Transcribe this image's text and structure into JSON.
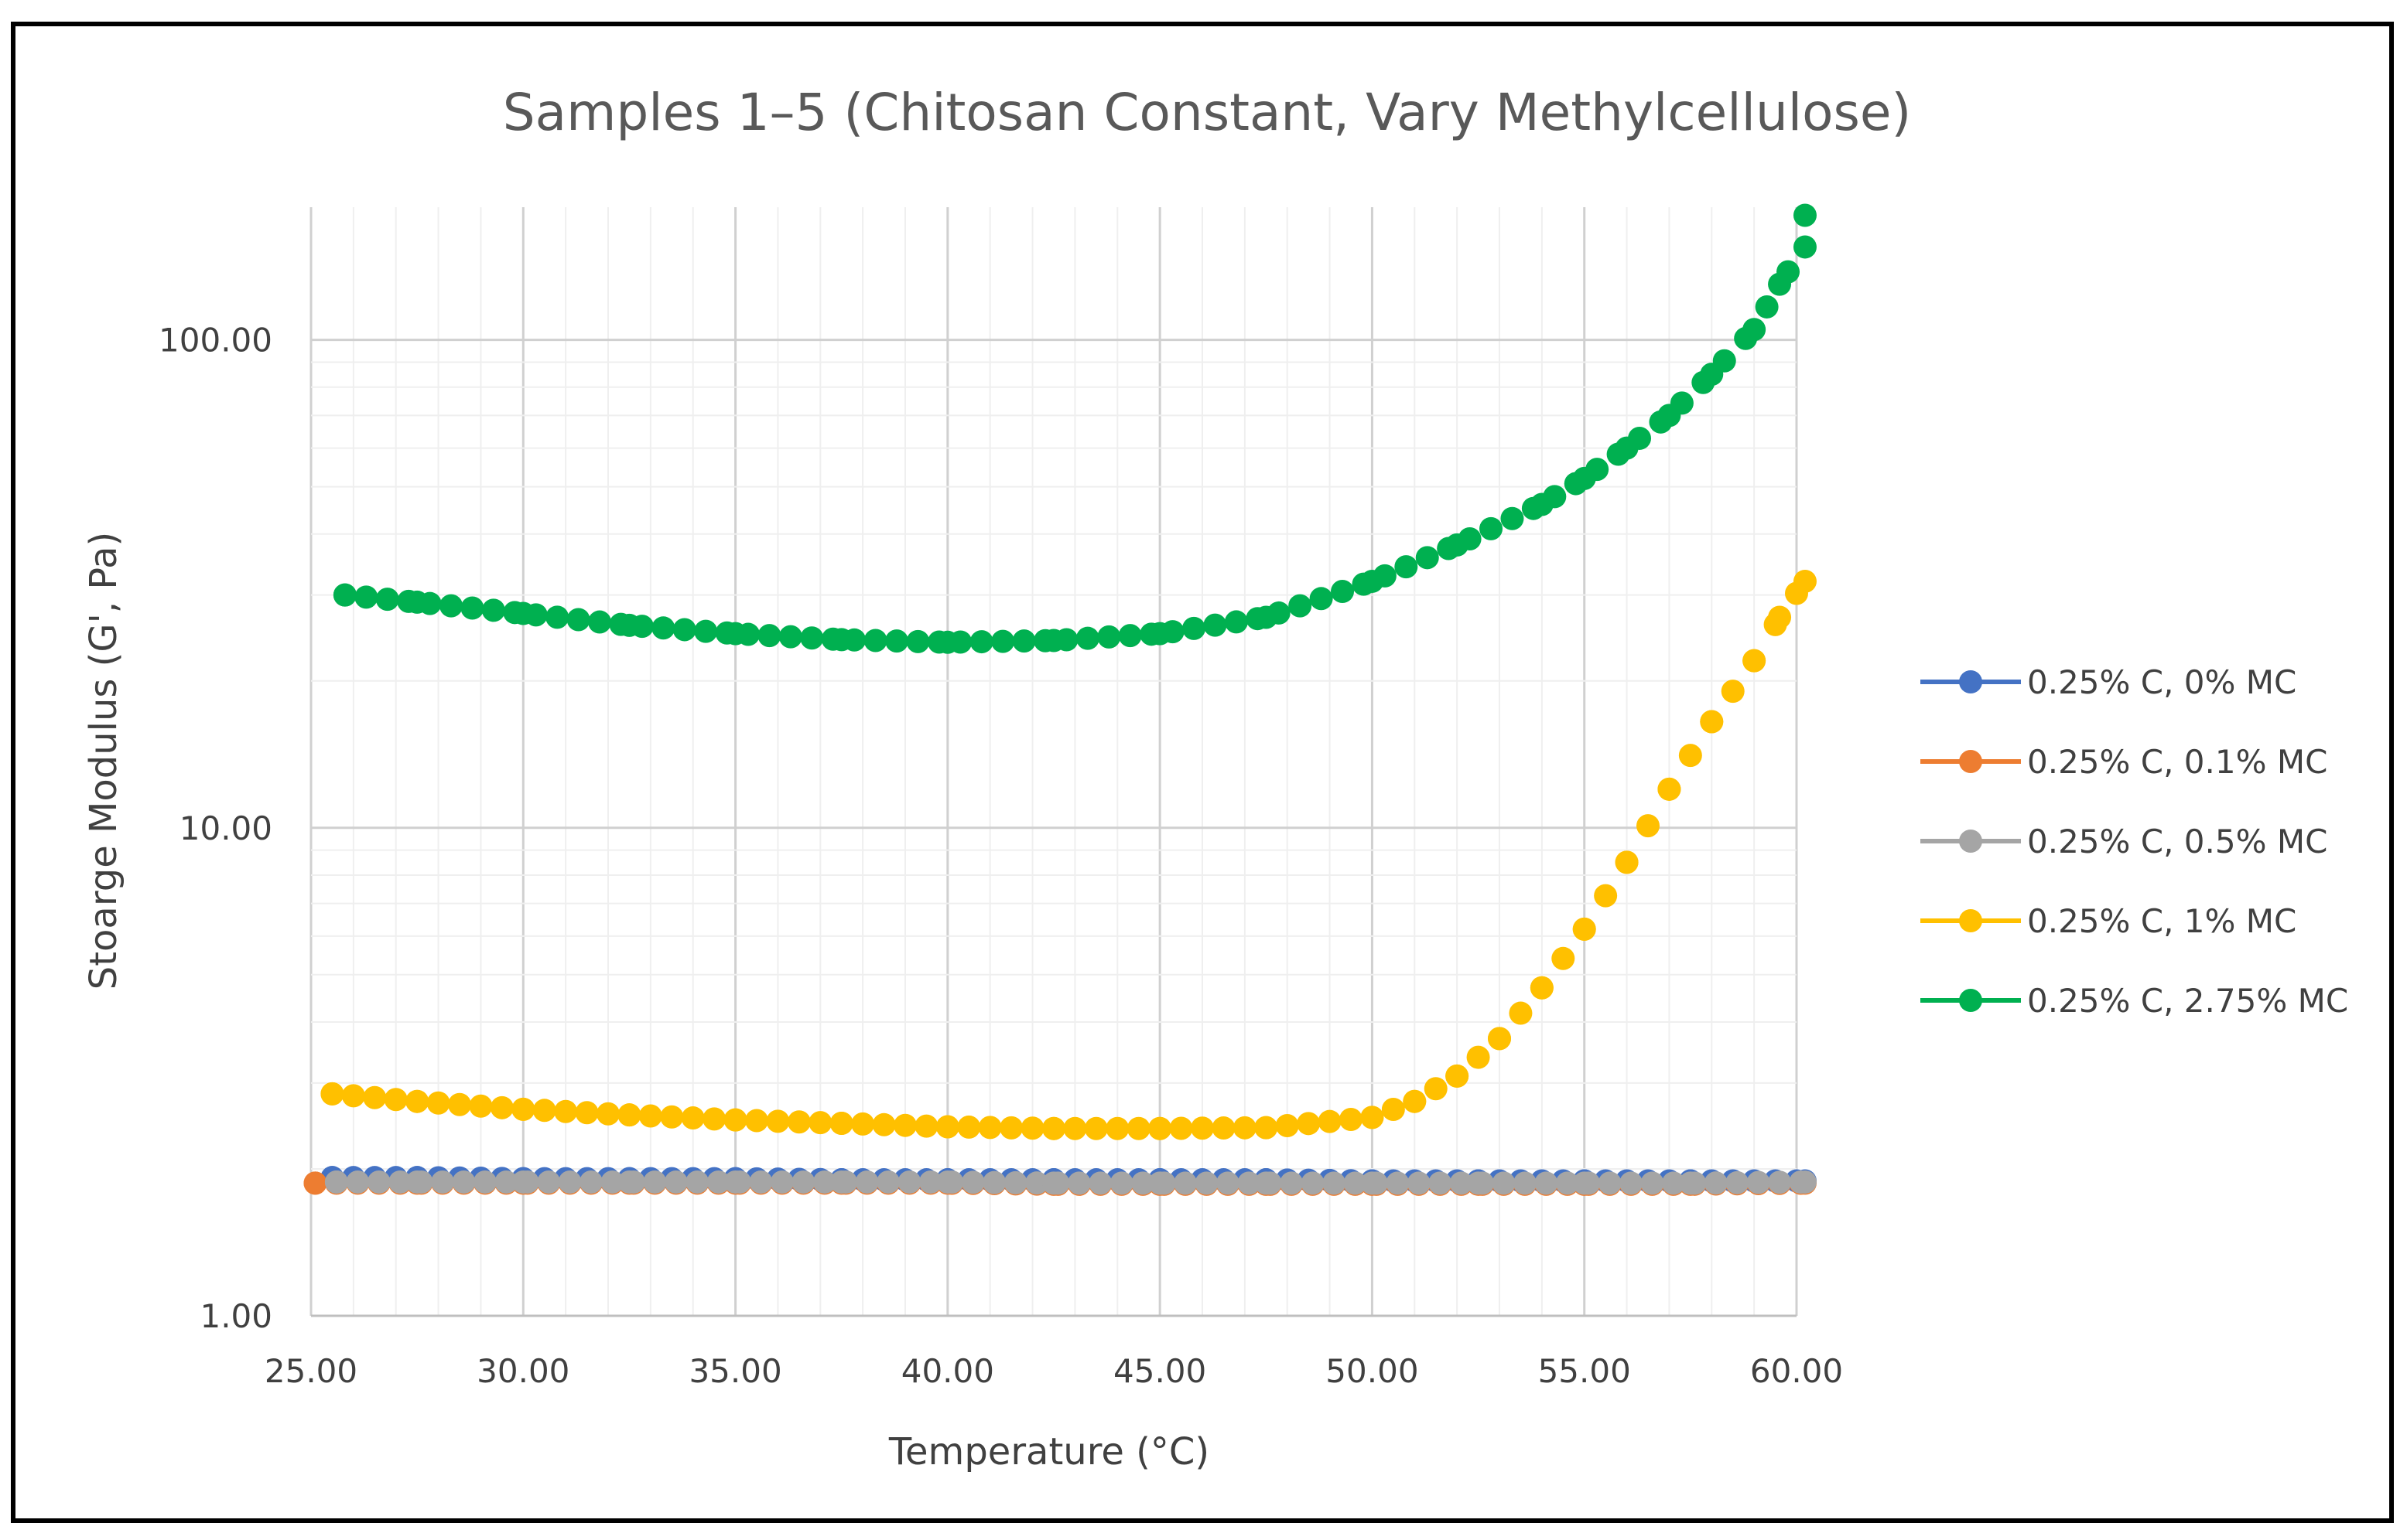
{
  "chart_data": {
    "type": "scatter",
    "title": "Samples 1–5 (Chitosan Constant, Vary Methylcellulose)",
    "xlabel": "Temperature (°C)",
    "ylabel": "Stoarge Modulus (G', Pa)",
    "xlim": [
      25,
      60
    ],
    "ylim": [
      1,
      200
    ],
    "yscale": "log",
    "grid": true,
    "legend_position": "right",
    "x_ticks": [
      {
        "value": 25,
        "label": "25.00"
      },
      {
        "value": 30,
        "label": "30.00"
      },
      {
        "value": 35,
        "label": "35.00"
      },
      {
        "value": 40,
        "label": "40.00"
      },
      {
        "value": 45,
        "label": "45.00"
      },
      {
        "value": 50,
        "label": "50.00"
      },
      {
        "value": 55,
        "label": "55.00"
      },
      {
        "value": 60,
        "label": "60.00"
      }
    ],
    "y_ticks": [
      {
        "value": 1,
        "label": "1.00"
      },
      {
        "value": 10,
        "label": "10.00"
      },
      {
        "value": 100,
        "label": "100.00"
      }
    ],
    "series": [
      {
        "name": "0.25% C, 0% MC",
        "color": "#4472C4",
        "x": [
          25.5,
          27.5,
          30,
          32.5,
          35,
          37.5,
          40,
          42.5,
          45,
          47.5,
          50,
          52.5,
          55,
          57.5,
          60.2
        ],
        "y": [
          1.92,
          1.92,
          1.91,
          1.91,
          1.91,
          1.9,
          1.9,
          1.9,
          1.9,
          1.9,
          1.89,
          1.89,
          1.89,
          1.89,
          1.89
        ]
      },
      {
        "name": "0.25% C, 0.1% MC",
        "color": "#ED7D31",
        "x": [
          25.1,
          27.5,
          30,
          32.5,
          35,
          37.5,
          40,
          42.5,
          45,
          47.5,
          50,
          52.5,
          55,
          57.5,
          60.2
        ],
        "y": [
          1.87,
          1.87,
          1.87,
          1.87,
          1.87,
          1.87,
          1.87,
          1.86,
          1.86,
          1.86,
          1.86,
          1.86,
          1.86,
          1.86,
          1.87
        ]
      },
      {
        "name": "0.25% C, 0.5% MC",
        "color": "#A5A5A5",
        "x": [
          25.6,
          27.5,
          30,
          32.5,
          35,
          37.5,
          40,
          42.5,
          45,
          47.5,
          50,
          52.5,
          55,
          57.5,
          60.2
        ],
        "y": [
          1.88,
          1.88,
          1.88,
          1.88,
          1.88,
          1.88,
          1.88,
          1.87,
          1.87,
          1.87,
          1.87,
          1.87,
          1.87,
          1.87,
          1.88
        ]
      },
      {
        "name": "0.25% C, 1% MC",
        "color": "#FFC000",
        "x": [
          25.5,
          27.5,
          30,
          32.5,
          35,
          37.5,
          40,
          42.5,
          45,
          47.5,
          50,
          51,
          52,
          53,
          54,
          55,
          56,
          57,
          58,
          59,
          59.6,
          60.2
        ],
        "y": [
          2.85,
          2.75,
          2.65,
          2.58,
          2.52,
          2.48,
          2.44,
          2.42,
          2.42,
          2.43,
          2.55,
          2.75,
          3.1,
          3.7,
          4.7,
          6.2,
          8.5,
          12,
          16.5,
          22,
          27,
          32
        ]
      },
      {
        "name": "0.25% C, 2.75% MC",
        "color": "#00B050",
        "x": [
          25.8,
          27.5,
          30,
          32.5,
          35,
          37.5,
          40,
          42.5,
          45,
          47.5,
          50,
          52,
          54,
          55,
          56,
          57,
          58,
          59,
          59.6,
          60.2,
          60.2
        ],
        "y": [
          30,
          29,
          27.5,
          26,
          25,
          24.3,
          24,
          24.2,
          25,
          27,
          32,
          38,
          46,
          52,
          60,
          70,
          85,
          105,
          130,
          155,
          180
        ]
      }
    ]
  }
}
